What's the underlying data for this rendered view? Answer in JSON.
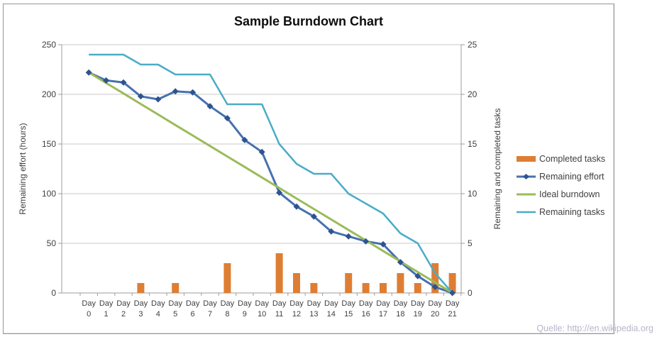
{
  "source_note": {
    "text": "Quelle: http://en.wikipedia.org",
    "color": "#b6b6ca"
  },
  "colors": {
    "completed_tasks": "#de7e34",
    "remaining_effort_line": "#4571b0",
    "remaining_effort_marker": "#2e548f",
    "ideal_burndown": "#9bbb59",
    "remaining_tasks": "#4bacc6",
    "gridline": "#c8c8c8",
    "axis_line": "#9c9c9c",
    "text": "#3f3f3f"
  },
  "chart_data": {
    "type": "combo-bar-line",
    "title": "Sample Burndown Chart",
    "x_axis": {
      "prefix": "Day",
      "labels": [
        "0",
        "1",
        "2",
        "3",
        "4",
        "5",
        "6",
        "7",
        "8",
        "9",
        "10",
        "11",
        "12",
        "13",
        "14",
        "15",
        "16",
        "17",
        "18",
        "19",
        "20",
        "21"
      ]
    },
    "left_axis": {
      "title": "Remaining effort (hours)",
      "min": 0,
      "max": 250,
      "step": 50,
      "ticks": [
        250,
        200,
        150,
        100,
        50,
        0
      ]
    },
    "right_axis": {
      "title": "Remaining and  completed tasks",
      "min": 0,
      "max": 25,
      "step": 5,
      "ticks": [
        25,
        20,
        15,
        10,
        5,
        0
      ]
    },
    "grid": true,
    "legend_position": "right",
    "series": [
      {
        "name": "Completed tasks",
        "type": "bar",
        "axis": "right",
        "values": [
          0,
          0,
          0,
          1,
          0,
          1,
          0,
          0,
          3,
          0,
          0,
          4,
          2,
          1,
          0,
          2,
          1,
          1,
          2,
          1,
          3,
          2
        ]
      },
      {
        "name": "Remaining effort",
        "type": "line-diamond",
        "axis": "left",
        "values": [
          222,
          214,
          212,
          198,
          195,
          203,
          202,
          188,
          176,
          154,
          142,
          101,
          87,
          77,
          62,
          57,
          52,
          49,
          31,
          17,
          6,
          0
        ]
      },
      {
        "name": "Ideal burndown",
        "type": "line",
        "axis": "left",
        "values": [
          222,
          211.4,
          200.9,
          190.3,
          179.7,
          169.1,
          158.6,
          148,
          137.4,
          126.9,
          116.3,
          105.7,
          95.1,
          84.6,
          74,
          63.4,
          52.9,
          42.3,
          31.7,
          21.1,
          10.6,
          0
        ]
      },
      {
        "name": "Remaining tasks",
        "type": "line",
        "axis": "right",
        "values": [
          24,
          24,
          24,
          23,
          23,
          22,
          22,
          22,
          19,
          19,
          19,
          15,
          13,
          12,
          12,
          10,
          9,
          8,
          6,
          5,
          2,
          0
        ]
      }
    ]
  }
}
